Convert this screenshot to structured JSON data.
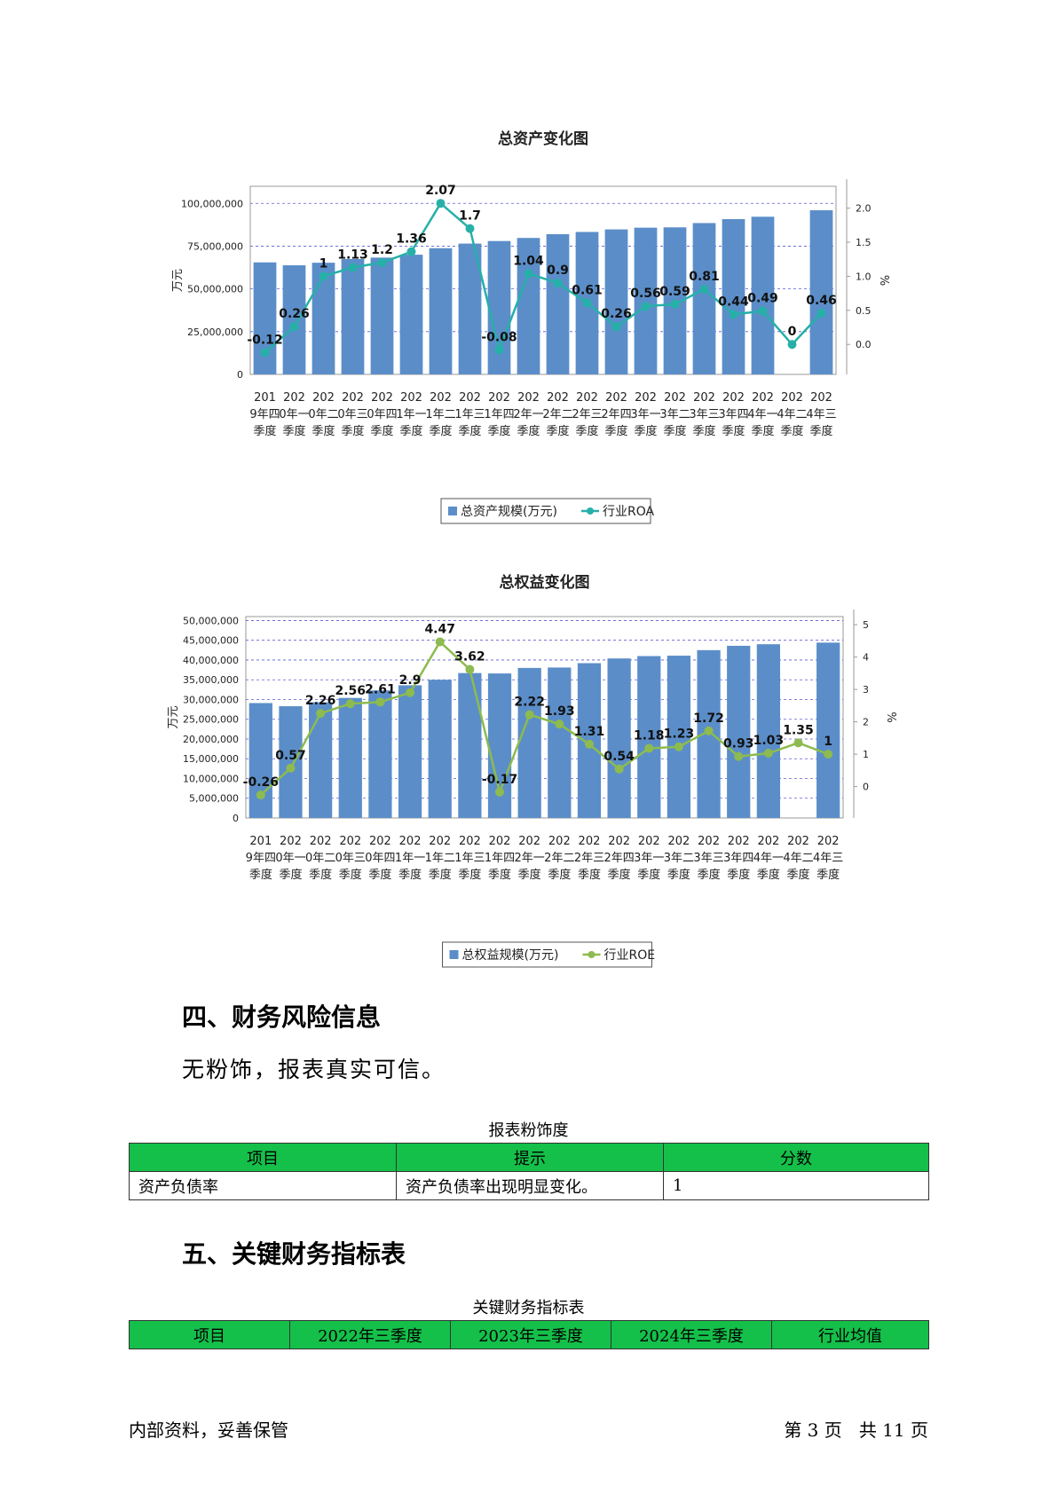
{
  "chart_data": [
    {
      "type": "bar",
      "title": "总资产变化图",
      "categories": [
        "2019年四季度",
        "2020年一季度",
        "2020年二季度",
        "2020年三季度",
        "2020年四季度",
        "2021年一季度",
        "2021年二季度",
        "2021年三季度",
        "2021年四季度",
        "2022年一季度",
        "2022年二季度",
        "2022年三季度",
        "2022年四季度",
        "2023年一季度",
        "2023年二季度",
        "2023年三季度",
        "2023年四季度",
        "2024年一季度",
        "2024年二季度",
        "2024年三季度"
      ],
      "series": [
        {
          "name": "总资产规模(万元)",
          "type": "bar",
          "axis": "left",
          "color": "#5b8ec9",
          "values": [
            65500000,
            63800000,
            65300000,
            67500000,
            68300000,
            70000000,
            73800000,
            76500000,
            78000000,
            79800000,
            82000000,
            83300000,
            84800000,
            85800000,
            86000000,
            88500000,
            90800000,
            92200000,
            null,
            96000000
          ]
        },
        {
          "name": "行业ROA",
          "type": "line",
          "axis": "right",
          "color": "#26b0a8",
          "values": [
            -0.12,
            0.26,
            1,
            1.13,
            1.2,
            1.36,
            2.07,
            1.7,
            -0.08,
            1.04,
            0.9,
            0.61,
            0.26,
            0.56,
            0.59,
            0.81,
            0.44,
            0.49,
            0,
            0.46
          ]
        }
      ],
      "ylabel": "万元",
      "y2label": "%",
      "ylim": [
        0,
        110000000
      ],
      "y2lim": [
        -0.44,
        2.32
      ],
      "yticks": [
        "0",
        "25,000,000",
        "50,000,000",
        "75,000,000",
        "100,000,000"
      ],
      "y2ticks": [
        "0.0",
        "0.5",
        "1.0",
        "1.5",
        "2.0"
      ],
      "grid": true,
      "legend": "bottom"
    },
    {
      "type": "bar",
      "title": "总权益变化图",
      "categories": [
        "2019年四季度",
        "2020年一季度",
        "2020年二季度",
        "2020年三季度",
        "2020年四季度",
        "2021年一季度",
        "2021年二季度",
        "2021年三季度",
        "2021年四季度",
        "2022年一季度",
        "2022年二季度",
        "2022年三季度",
        "2022年四季度",
        "2023年一季度",
        "2023年二季度",
        "2023年三季度",
        "2023年四季度",
        "2024年一季度",
        "2024年二季度",
        "2024年三季度"
      ],
      "series": [
        {
          "name": "总权益规模(万元)",
          "type": "bar",
          "axis": "left",
          "color": "#5b8ec9",
          "values": [
            29100000,
            28300000,
            29300000,
            30400000,
            32300000,
            33600000,
            35000000,
            36700000,
            36600000,
            38000000,
            38100000,
            39200000,
            40400000,
            41000000,
            41100000,
            42500000,
            43600000,
            44000000,
            null,
            44400000
          ]
        },
        {
          "name": "行业ROE",
          "type": "line",
          "axis": "right",
          "color": "#8dbb4f",
          "values": [
            -0.26,
            0.57,
            2.26,
            2.56,
            2.61,
            2.9,
            4.47,
            3.62,
            -0.17,
            2.22,
            1.93,
            1.31,
            0.54,
            1.18,
            1.23,
            1.72,
            0.93,
            1.03,
            1.35,
            1
          ]
        }
      ],
      "ylabel": "万元",
      "y2label": "%",
      "ylim": [
        0,
        51000000
      ],
      "y2lim": [
        -0.97,
        5.25
      ],
      "yticks": [
        "0",
        "5,000,000",
        "10,000,000",
        "15,000,000",
        "20,000,000",
        "25,000,000",
        "30,000,000",
        "35,000,000",
        "40,000,000",
        "45,000,000",
        "50,000,000"
      ],
      "y2ticks": [
        "0",
        "1",
        "2",
        "3",
        "4",
        "5"
      ],
      "grid": true,
      "legend": "bottom"
    }
  ],
  "section4": {
    "heading": "四、财务风险信息",
    "text": "无粉饰，报表真实可信。",
    "table_caption": "报表粉饰度",
    "headers": [
      "项目",
      "提示",
      "分数"
    ],
    "rows": [
      [
        "资产负债率",
        "资产负债率出现明显变化。",
        "1"
      ]
    ]
  },
  "section5": {
    "heading": "五、关键财务指标表",
    "table_caption": "关键财务指标表",
    "headers": [
      "项目",
      "2022年三季度",
      "2023年三季度",
      "2024年三季度",
      "行业均值"
    ]
  },
  "footer": {
    "left": "内部资料，妥善保管",
    "right": "第 3 页   共 11 页"
  },
  "colors": {
    "header_green": "#15c04a",
    "bar_blue": "#5b8ec9",
    "roa_teal": "#26b0a8",
    "roe_green": "#8dbb4f"
  }
}
